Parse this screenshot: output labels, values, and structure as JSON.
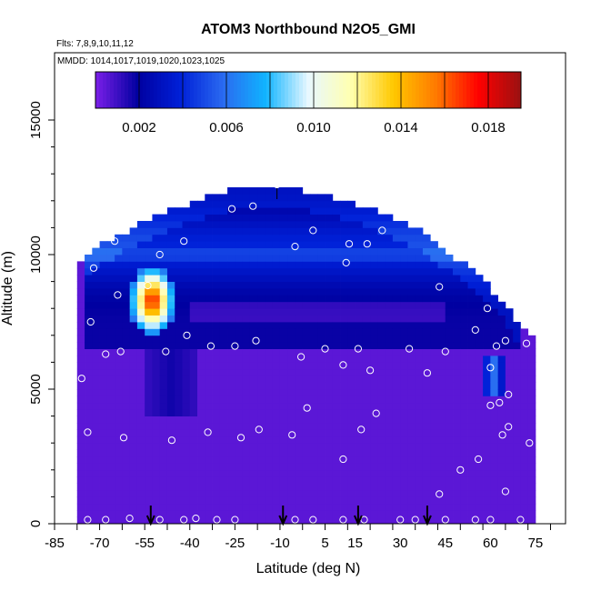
{
  "chart_data": {
    "type": "heatmap",
    "title": "ATOM3 Northbound N2O5_GMI",
    "subtitle_flights": "Flts: 7,8,9,10,11,12",
    "subtitle_dates": "MMDD: 1014,1017,1019,1020,1023,1025",
    "xlabel": "Latitude (deg N)",
    "ylabel": "Altitude (m)",
    "xlim": [
      -85,
      85
    ],
    "ylim": [
      0,
      17500
    ],
    "x_ticks": [
      -85,
      -70,
      -55,
      -40,
      -25,
      -10,
      5,
      15,
      30,
      45,
      60,
      75
    ],
    "x_tick_labels": [
      "-85",
      "-70",
      "-55",
      "-40",
      "-25",
      "-10",
      "5",
      "15",
      "30",
      "45",
      "60",
      "75"
    ],
    "y_ticks": [
      0,
      5000,
      10000,
      15000
    ],
    "y_tick_labels": [
      "0",
      "5000",
      "10000",
      "15000"
    ],
    "colorbar": {
      "range": [
        0,
        0.0195
      ],
      "ticks": [
        0.002,
        0.006,
        0.01,
        0.014,
        0.018
      ],
      "tick_labels": [
        "0.002",
        "0.006",
        "0.010",
        "0.014",
        "0.018"
      ],
      "colors": [
        "#7b1fe8",
        "#0000a0",
        "#0020d8",
        "#2a6af0",
        "#10b4ff",
        "#e8f8ff",
        "#ffffb0",
        "#ffc800",
        "#ff7a00",
        "#ff0000",
        "#991111"
      ]
    },
    "field_columns": [
      {
        "lat": -75,
        "top": 9800
      },
      {
        "lat": -70,
        "top": 10300
      },
      {
        "lat": -65,
        "top": 10600
      },
      {
        "lat": -60,
        "top": 10900
      },
      {
        "lat": -55,
        "top": 11200
      },
      {
        "lat": -45,
        "top": 11700
      },
      {
        "lat": -35,
        "top": 12100
      },
      {
        "lat": -25,
        "top": 12450
      },
      {
        "lat": -15,
        "top": 12500
      },
      {
        "lat": -5,
        "top": 12400
      },
      {
        "lat": 5,
        "top": 12200
      },
      {
        "lat": 15,
        "top": 11900
      },
      {
        "lat": 25,
        "top": 11500
      },
      {
        "lat": 35,
        "top": 11000
      },
      {
        "lat": 45,
        "top": 10200
      },
      {
        "lat": 55,
        "top": 9300
      },
      {
        "lat": 65,
        "top": 8200
      },
      {
        "lat": 72,
        "top": 7000
      }
    ],
    "features": [
      {
        "kind": "upper_blue_band",
        "lat": [
          -75,
          70
        ],
        "alt": [
          6400,
          12500
        ],
        "value": 0.003
      },
      {
        "kind": "mid_blue_band",
        "lat": [
          -70,
          45
        ],
        "alt": [
          8600,
          10400
        ],
        "value": 0.005
      },
      {
        "kind": "hotspot",
        "lat": [
          -55,
          -50
        ],
        "alt": [
          8000,
          8800
        ],
        "value": 0.018
      },
      {
        "kind": "warm_ring",
        "lat": [
          -57,
          -48
        ],
        "alt": [
          7500,
          9100
        ],
        "value": 0.012
      },
      {
        "kind": "cyan_ring",
        "lat": [
          -60,
          -45
        ],
        "alt": [
          7000,
          9600
        ],
        "value": 0.007
      },
      {
        "kind": "low_tongue_south",
        "lat": [
          -55,
          -38
        ],
        "alt": [
          4000,
          6400
        ],
        "value": 0.002
      },
      {
        "kind": "cyan_north",
        "lat": [
          58,
          64
        ],
        "alt": [
          4800,
          6200
        ],
        "value": 0.006
      }
    ],
    "obs_points": [
      {
        "lat": -76,
        "alt": 5400
      },
      {
        "lat": -74,
        "alt": 3400
      },
      {
        "lat": -73,
        "alt": 7500
      },
      {
        "lat": -72,
        "alt": 9500
      },
      {
        "lat": -68,
        "alt": 6300
      },
      {
        "lat": -65,
        "alt": 10500
      },
      {
        "lat": -64,
        "alt": 8500
      },
      {
        "lat": -63,
        "alt": 6400
      },
      {
        "lat": -62,
        "alt": 3200
      },
      {
        "lat": -60,
        "alt": 200
      },
      {
        "lat": -54,
        "alt": 8850
      },
      {
        "lat": -50,
        "alt": 10000
      },
      {
        "lat": -48,
        "alt": 6400
      },
      {
        "lat": -46,
        "alt": 3100
      },
      {
        "lat": -42,
        "alt": 10500
      },
      {
        "lat": -41,
        "alt": 7000
      },
      {
        "lat": -38,
        "alt": 200
      },
      {
        "lat": -34,
        "alt": 3400
      },
      {
        "lat": -33,
        "alt": 6600
      },
      {
        "lat": -26,
        "alt": 11700
      },
      {
        "lat": -25,
        "alt": 6600
      },
      {
        "lat": -23,
        "alt": 3200
      },
      {
        "lat": -19,
        "alt": 11800
      },
      {
        "lat": -18,
        "alt": 6800
      },
      {
        "lat": -17,
        "alt": 3500
      },
      {
        "lat": -11,
        "alt": 12600
      },
      {
        "lat": -6,
        "alt": 3300
      },
      {
        "lat": -5,
        "alt": 10300
      },
      {
        "lat": -3,
        "alt": 6200
      },
      {
        "lat": -1,
        "alt": 4300
      },
      {
        "lat": 1,
        "alt": 10900
      },
      {
        "lat": 5,
        "alt": 6500
      },
      {
        "lat": 11,
        "alt": 2400
      },
      {
        "lat": 11,
        "alt": 5900
      },
      {
        "lat": 12,
        "alt": 9700
      },
      {
        "lat": 13,
        "alt": 10400
      },
      {
        "lat": 16,
        "alt": 6500
      },
      {
        "lat": 17,
        "alt": 3500
      },
      {
        "lat": 19,
        "alt": 10400
      },
      {
        "lat": 20,
        "alt": 5700
      },
      {
        "lat": 22,
        "alt": 4100
      },
      {
        "lat": 24,
        "alt": 10900
      },
      {
        "lat": 33,
        "alt": 6500
      },
      {
        "lat": 37,
        "alt": 11500
      },
      {
        "lat": 39,
        "alt": 5600
      },
      {
        "lat": 43,
        "alt": 8800
      },
      {
        "lat": 43,
        "alt": 1100
      },
      {
        "lat": 45,
        "alt": 6400
      },
      {
        "lat": 50,
        "alt": 2000
      },
      {
        "lat": 55,
        "alt": 7200
      },
      {
        "lat": 56,
        "alt": 2400
      },
      {
        "lat": 59,
        "alt": 8000
      },
      {
        "lat": 60,
        "alt": 5800
      },
      {
        "lat": 60,
        "alt": 4400
      },
      {
        "lat": 62,
        "alt": 6600
      },
      {
        "lat": 63,
        "alt": 4500
      },
      {
        "lat": 64,
        "alt": 3300
      },
      {
        "lat": 65,
        "alt": 6800
      },
      {
        "lat": 65,
        "alt": 1200
      },
      {
        "lat": 66,
        "alt": 3600
      },
      {
        "lat": 66,
        "alt": 4800
      },
      {
        "lat": 66,
        "alt": 8400
      },
      {
        "lat": 72,
        "alt": 6700
      },
      {
        "lat": 73,
        "alt": 3000
      },
      {
        "lat": -74,
        "alt": 150
      },
      {
        "lat": -68,
        "alt": 150
      },
      {
        "lat": -50,
        "alt": 150
      },
      {
        "lat": -42,
        "alt": 150
      },
      {
        "lat": -31,
        "alt": 150
      },
      {
        "lat": -25,
        "alt": 150
      },
      {
        "lat": -5,
        "alt": 150
      },
      {
        "lat": 1,
        "alt": 150
      },
      {
        "lat": 11,
        "alt": 150
      },
      {
        "lat": 18,
        "alt": 150
      },
      {
        "lat": 30,
        "alt": 150
      },
      {
        "lat": 35,
        "alt": 150
      },
      {
        "lat": 45,
        "alt": 150
      },
      {
        "lat": 55,
        "alt": 150
      },
      {
        "lat": 60,
        "alt": 150
      },
      {
        "lat": 70,
        "alt": 150
      }
    ],
    "arrows_lat": [
      -53,
      -9,
      16,
      39
    ],
    "top_marker_lat": -11
  }
}
